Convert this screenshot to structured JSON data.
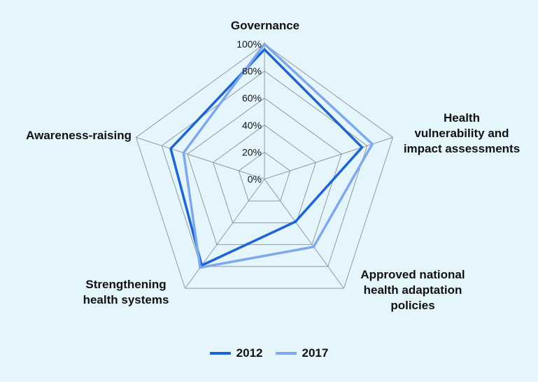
{
  "chart_data": {
    "type": "radar",
    "title": "",
    "categories": [
      "Governance",
      "Health\nvulnerability and\nimpact assessments",
      "Approved national\nhealth adaptation\npolicies",
      "Strengthening\nhealth systems",
      "Awareness-raising"
    ],
    "radial_ticks": [
      "0%",
      "20%",
      "40%",
      "60%",
      "80%",
      "100%"
    ],
    "rlim": [
      0,
      100
    ],
    "grid": true,
    "legend_position": "bottom",
    "series": [
      {
        "name": "2012",
        "color": "#1e64d2",
        "values": [
          96,
          76,
          39,
          79,
          73
        ]
      },
      {
        "name": "2017",
        "color": "#7fa8ec",
        "values": [
          100,
          84,
          62,
          81,
          63
        ]
      }
    ]
  }
}
